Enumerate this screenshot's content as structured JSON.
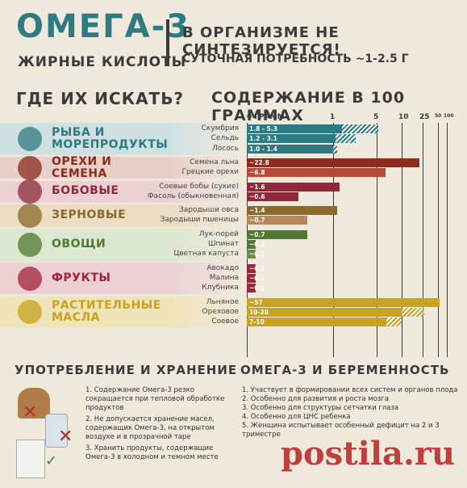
{
  "header": {
    "title": "ОМЕГА-3",
    "subtitle": "ЖИРНЫЕ КИСЛОТЫ",
    "claim": "В ОРГАНИЗМЕ НЕ СИНТЕЗИРУЕТСЯ!",
    "daily_need": "СУТОЧНАЯ ПОТРЕБНОСТЬ ~1-2.5 Г"
  },
  "sections": {
    "where": "ГДЕ ИХ ИСКАТЬ?",
    "content": "СОДЕРЖАНИЕ В 100 ГРАММАХ",
    "usage": "УПОТРЕБЛЕНИЕ И ХРАНЕНИЕ",
    "pregnancy": "ОМЕГА-3 И БЕРЕМЕННОСТЬ"
  },
  "categories": [
    {
      "name_1": "РЫБА И",
      "name_2": "МОРЕПРОДУКТЫ",
      "color": "#2e7a83",
      "band": "#cfe0e0"
    },
    {
      "name_1": "ОРЕХИ И",
      "name_2": "СЕМЕНА",
      "color": "#8a2c20",
      "band": "#e8cfc8"
    },
    {
      "name_1": "БОБОВЫЕ",
      "name_2": "",
      "color": "#8c2a3a",
      "band": "#ecd0d4"
    },
    {
      "name_1": "ЗЕРНОВЫЕ",
      "name_2": "",
      "color": "#8a6a2c",
      "band": "#ecdcc2"
    },
    {
      "name_1": "ОВОЩИ",
      "name_2": "",
      "color": "#4d7a2e",
      "band": "#dde6cf"
    },
    {
      "name_1": "ФРУКТЫ",
      "name_2": "",
      "color": "#a0233a",
      "band": "#ecd0d4"
    },
    {
      "name_1": "РАСТИТЕЛЬНЫЕ",
      "name_2": "МАСЛА",
      "color": "#c9a21f",
      "band": "#efe3b8"
    }
  ],
  "chart_data": {
    "type": "bar",
    "orientation": "horizontal",
    "x_scale": "nonlinear",
    "x_ticks": [
      "0 ГРАММ",
      "1",
      "5",
      "10",
      "25",
      "50",
      "100"
    ],
    "items": [
      {
        "label": "Скумбрия",
        "value_text": "1.8 - 5.3",
        "min": 1.8,
        "max": 5.3,
        "color": "#2e7a83",
        "group": 0
      },
      {
        "label": "Сельдь",
        "value_text": "1.2 - 3.1",
        "min": 1.2,
        "max": 3.1,
        "color": "#2e7a83",
        "group": 0
      },
      {
        "label": "Лосось",
        "value_text": "1.0 - 1.4",
        "min": 1.0,
        "max": 1.4,
        "color": "#2e7a83",
        "group": 0
      },
      {
        "label": "Семена льна",
        "value_text": "~22.8",
        "min": 22.8,
        "max": 22.8,
        "color": "#8a2c20",
        "group": 1
      },
      {
        "label": "Грецкие орехи",
        "value_text": "~6.8",
        "min": 6.8,
        "max": 6.8,
        "color": "#b44a3a",
        "group": 1
      },
      {
        "label": "Соевые бобы (сухие)",
        "value_text": "~1.6",
        "min": 1.6,
        "max": 1.6,
        "color": "#8c2a3a",
        "group": 2
      },
      {
        "label": "Фасоль (обыкновенная)",
        "value_text": "~0.6",
        "min": 0.6,
        "max": 0.6,
        "color": "#8c2a3a",
        "group": 2
      },
      {
        "label": "Зародыши овса",
        "value_text": "~1.4",
        "min": 1.4,
        "max": 1.4,
        "color": "#8a6a2c",
        "group": 3
      },
      {
        "label": "Зародыши пшеницы",
        "value_text": "~0.7",
        "min": 0.7,
        "max": 0.7,
        "color": "#b8875a",
        "group": 3
      },
      {
        "label": "Лук-порей",
        "value_text": "~0.7",
        "min": 0.7,
        "max": 0.7,
        "color": "#4d7a2e",
        "group": 4
      },
      {
        "label": "Шпинат",
        "value_text": "~0.1",
        "min": 0.1,
        "max": 0.1,
        "color": "#4d7a2e",
        "group": 4
      },
      {
        "label": "Цветная капуста",
        "value_text": "~0.1",
        "min": 0.1,
        "max": 0.1,
        "color": "#6a8f4a",
        "group": 4
      },
      {
        "label": "Авокадо",
        "value_text": "~0.1",
        "min": 0.1,
        "max": 0.1,
        "color": "#a0233a",
        "group": 5
      },
      {
        "label": "Малина",
        "value_text": "~0.1",
        "min": 0.1,
        "max": 0.1,
        "color": "#a0233a",
        "group": 5
      },
      {
        "label": "Клубника",
        "value_text": "~0.1",
        "min": 0.1,
        "max": 0.1,
        "color": "#a0233a",
        "group": 5
      },
      {
        "label": "Льняное",
        "value_text": "~57",
        "min": 57,
        "max": 57,
        "color": "#c9a21f",
        "group": 6
      },
      {
        "label": "Ореховое",
        "value_text": "10-28",
        "min": 10,
        "max": 28,
        "color": "#c9a21f",
        "group": 6
      },
      {
        "label": "Соевое",
        "value_text": "7-10",
        "min": 7,
        "max": 10,
        "color": "#c9a21f",
        "group": 6
      }
    ]
  },
  "usage": {
    "items": [
      "1. Содержание Омега-3 резко сокращается при тепловой обработке продуктов",
      "2. Не допускается хранение масел, содержащих Омега-3, на открытом воздухе и в прозрачной таре",
      "3. Хранить продукты, содержащие Омега-3 в холодном и темном месте"
    ]
  },
  "pregnancy": {
    "items": [
      "1. Участвует в формировании всех систем и органов плода",
      "2. Особенно для развития и роста мозга",
      "3. Особенно для структуры сетчатки глаза",
      "4. Особенно для ЦНС ребенка",
      "5. Женщина испытывает особенный дефицит на 2 и 3 триместре"
    ]
  },
  "watermark": "postila.ru"
}
